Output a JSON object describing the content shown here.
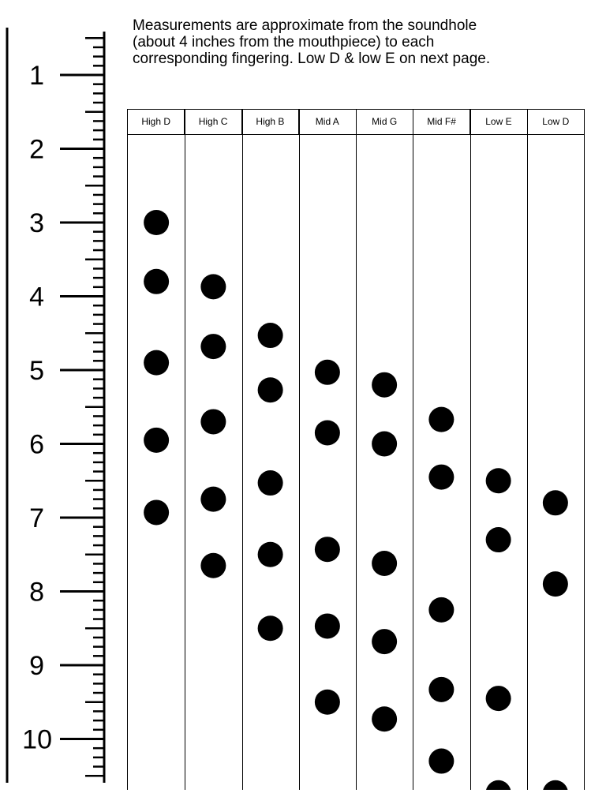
{
  "note": {
    "lines": [
      "Measurements are approximate from the soundhole",
      "(about 4 inches from the mouthpiece) to each",
      "corresponding fingering. Low D & low E on next page."
    ]
  },
  "ruler": {
    "labels": [
      "1",
      "2",
      "3",
      "4",
      "5",
      "6",
      "7",
      "8",
      "9",
      "10"
    ],
    "ticks_per_inch": 8
  },
  "columns": [
    "High D",
    "High C",
    "High B",
    "Mid A",
    "Mid G",
    "Mid F#",
    "Low E",
    "Low D"
  ],
  "fingerings": [
    {
      "note": "High D",
      "holes": [
        3.0,
        3.8,
        4.9,
        5.95,
        6.93
      ]
    },
    {
      "note": "High C",
      "holes": [
        3.87,
        4.68,
        5.7,
        6.75,
        7.65
      ]
    },
    {
      "note": "High B",
      "holes": [
        4.53,
        5.27,
        6.53,
        7.5,
        8.5
      ]
    },
    {
      "note": "Mid A",
      "holes": [
        5.03,
        5.85,
        7.43,
        8.47,
        9.5
      ]
    },
    {
      "note": "Mid G",
      "holes": [
        5.2,
        6.0,
        7.62,
        8.68,
        9.73
      ]
    },
    {
      "note": "Mid F#",
      "holes": [
        5.67,
        6.45,
        8.25,
        9.33,
        10.3
      ]
    },
    {
      "note": "Low E",
      "holes": [
        6.5,
        7.3,
        9.45,
        10.73
      ]
    },
    {
      "note": "Low D",
      "holes": [
        6.8,
        7.9,
        10.73
      ]
    }
  ]
}
